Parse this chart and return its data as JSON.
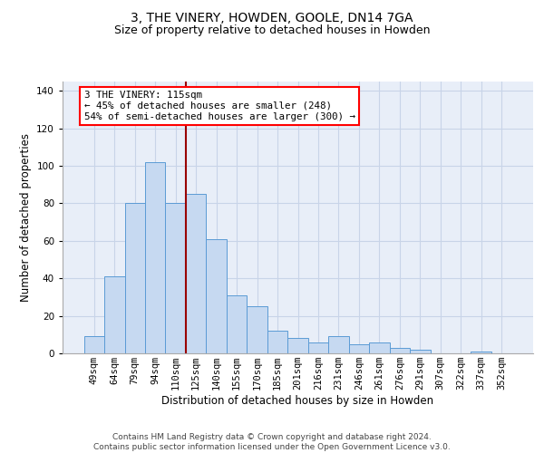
{
  "title_line1": "3, THE VINERY, HOWDEN, GOOLE, DN14 7GA",
  "title_line2": "Size of property relative to detached houses in Howden",
  "xlabel": "Distribution of detached houses by size in Howden",
  "ylabel": "Number of detached properties",
  "categories": [
    "49sqm",
    "64sqm",
    "79sqm",
    "94sqm",
    "110sqm",
    "125sqm",
    "140sqm",
    "155sqm",
    "170sqm",
    "185sqm",
    "201sqm",
    "216sqm",
    "231sqm",
    "246sqm",
    "261sqm",
    "276sqm",
    "291sqm",
    "307sqm",
    "322sqm",
    "337sqm",
    "352sqm"
  ],
  "values": [
    9,
    41,
    80,
    102,
    80,
    85,
    61,
    31,
    25,
    12,
    8,
    6,
    9,
    5,
    6,
    3,
    2,
    0,
    0,
    1,
    0
  ],
  "bar_color": "#c6d9f1",
  "bar_edge_color": "#5b9bd5",
  "vline_x_idx": 4.5,
  "vline_color": "#990000",
  "annotation_text": "3 THE VINERY: 115sqm\n← 45% of detached houses are smaller (248)\n54% of semi-detached houses are larger (300) →",
  "annotation_box_color": "white",
  "annotation_box_edge_color": "red",
  "ylim": [
    0,
    145
  ],
  "yticks": [
    0,
    20,
    40,
    60,
    80,
    100,
    120,
    140
  ],
  "grid_color": "#c8d4e8",
  "bg_color": "#e8eef8",
  "footer_text": "Contains HM Land Registry data © Crown copyright and database right 2024.\nContains public sector information licensed under the Open Government Licence v3.0.",
  "title_fontsize": 10,
  "subtitle_fontsize": 9,
  "label_fontsize": 8.5,
  "tick_fontsize": 7.5,
  "footer_fontsize": 6.5,
  "annot_fontsize": 7.8
}
